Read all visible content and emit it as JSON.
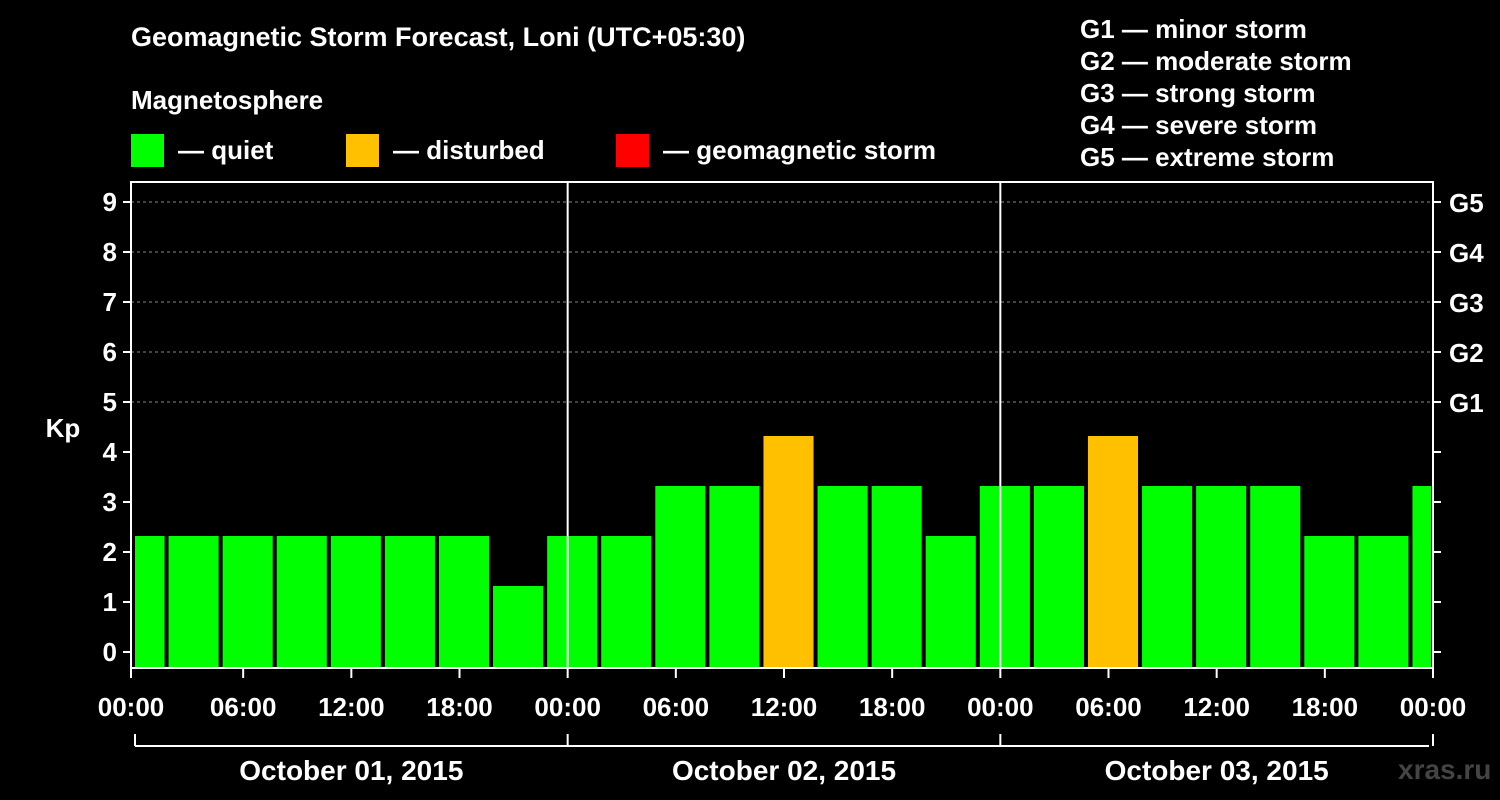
{
  "title": "Geomagnetic Storm Forecast, Loni (UTC+05:30)",
  "subtitle": "Magnetosphere",
  "legend": [
    {
      "color": "#00ff00",
      "label": "— quiet"
    },
    {
      "color": "#ffc000",
      "label": "— disturbed"
    },
    {
      "color": "#ff0000",
      "label": "— geomagnetic storm"
    }
  ],
  "g_scale": [
    "G1 — minor storm",
    "G2 — moderate storm",
    "G3 — strong storm",
    "G4 — severe storm",
    "G5 — extreme storm"
  ],
  "watermark": "xras.ru",
  "chart_data": {
    "type": "bar",
    "title": "Geomagnetic Storm Forecast, Loni (UTC+05:30)",
    "ylabel": "Kp",
    "ylim": [
      0,
      9
    ],
    "yticks": [
      "0",
      "1",
      "2",
      "3",
      "4",
      "5",
      "6",
      "7",
      "8",
      "9"
    ],
    "right_axis_ticks": [
      {
        "kp": 5,
        "label": "G1"
      },
      {
        "kp": 6,
        "label": "G2"
      },
      {
        "kp": 7,
        "label": "G3"
      },
      {
        "kp": 8,
        "label": "G4"
      },
      {
        "kp": 9,
        "label": "G5"
      }
    ],
    "x_tick_labels": [
      "00:00",
      "06:00",
      "12:00",
      "18:00",
      "00:00",
      "06:00",
      "12:00",
      "18:00",
      "00:00",
      "06:00",
      "12:00",
      "18:00",
      "00:00"
    ],
    "x_tick_hours": [
      0,
      6,
      12,
      18,
      24,
      30,
      36,
      42,
      48,
      54,
      60,
      66,
      72
    ],
    "day_labels": [
      "October 01, 2015",
      "October 02, 2015",
      "October 03, 2015"
    ],
    "day_divider_hours": [
      24,
      48
    ],
    "x_range_hours": [
      0,
      72
    ],
    "bars": [
      {
        "start": 0,
        "end": 1.75,
        "kp": 2,
        "level": "quiet"
      },
      {
        "start": 1.75,
        "end": 4.75,
        "kp": 2,
        "level": "quiet"
      },
      {
        "start": 4.75,
        "end": 7.75,
        "kp": 2,
        "level": "quiet"
      },
      {
        "start": 7.75,
        "end": 10.75,
        "kp": 2,
        "level": "quiet"
      },
      {
        "start": 10.75,
        "end": 13.75,
        "kp": 2,
        "level": "quiet"
      },
      {
        "start": 13.75,
        "end": 16.75,
        "kp": 2,
        "level": "quiet"
      },
      {
        "start": 16.75,
        "end": 19.75,
        "kp": 2,
        "level": "quiet"
      },
      {
        "start": 19.75,
        "end": 22.75,
        "kp": 1,
        "level": "quiet"
      },
      {
        "start": 22.75,
        "end": 25.75,
        "kp": 2,
        "level": "quiet"
      },
      {
        "start": 25.75,
        "end": 28.75,
        "kp": 2,
        "level": "quiet"
      },
      {
        "start": 28.75,
        "end": 31.75,
        "kp": 3,
        "level": "quiet"
      },
      {
        "start": 31.75,
        "end": 34.75,
        "kp": 3,
        "level": "quiet"
      },
      {
        "start": 34.75,
        "end": 37.75,
        "kp": 4,
        "level": "disturbed"
      },
      {
        "start": 37.75,
        "end": 40.75,
        "kp": 3,
        "level": "quiet"
      },
      {
        "start": 40.75,
        "end": 43.75,
        "kp": 3,
        "level": "quiet"
      },
      {
        "start": 43.75,
        "end": 46.75,
        "kp": 2,
        "level": "quiet"
      },
      {
        "start": 46.75,
        "end": 49.75,
        "kp": 3,
        "level": "quiet"
      },
      {
        "start": 49.75,
        "end": 52.75,
        "kp": 3,
        "level": "quiet"
      },
      {
        "start": 52.75,
        "end": 55.75,
        "kp": 4,
        "level": "disturbed"
      },
      {
        "start": 55.75,
        "end": 58.75,
        "kp": 3,
        "level": "quiet"
      },
      {
        "start": 58.75,
        "end": 61.75,
        "kp": 3,
        "level": "quiet"
      },
      {
        "start": 61.75,
        "end": 64.75,
        "kp": 3,
        "level": "quiet"
      },
      {
        "start": 64.75,
        "end": 67.75,
        "kp": 2,
        "level": "quiet"
      },
      {
        "start": 67.75,
        "end": 70.75,
        "kp": 2,
        "level": "quiet"
      },
      {
        "start": 70.75,
        "end": 72,
        "kp": 3,
        "level": "quiet"
      }
    ],
    "level_colors": {
      "quiet": "#00ff00",
      "disturbed": "#ffc000",
      "storm": "#ff0000"
    },
    "grid": "dashed horizontal at Kp 5-9"
  }
}
